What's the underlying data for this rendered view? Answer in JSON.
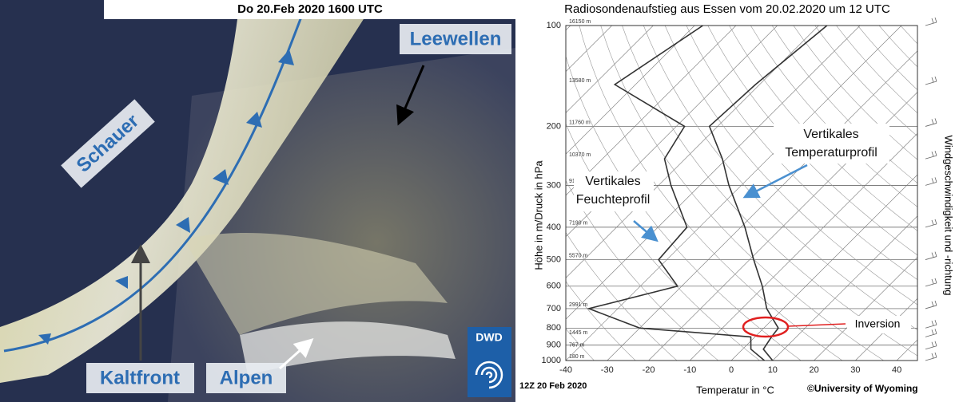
{
  "left_panel": {
    "title": "Do 20.Feb 2020 1600 UTC",
    "labels": [
      "Leewellen",
      "Schauer",
      "Kaltfront",
      "Alpen"
    ],
    "logo": "DWD"
  },
  "chart_data": {
    "type": "skewt",
    "title": "Radiosondenaufstieg aus Essen vom 20.02.2020 um 12 UTC",
    "x_label": "Temperatur in °C",
    "y_label": "Höhe in m/Druck in hPa",
    "y2_label": "Windgeschwindigkeit und -richtung",
    "xlim": [
      -40,
      45
    ],
    "xticks": [
      -40,
      -30,
      -20,
      -10,
      0,
      10,
      20,
      30,
      40
    ],
    "ylim": [
      1000,
      100
    ],
    "yticks": [
      100,
      200,
      300,
      400,
      500,
      600,
      700,
      800,
      900,
      1000
    ],
    "log_scale": true,
    "skewed_isotherms": true,
    "pressure": [
      1000,
      925,
      850,
      800,
      700,
      600,
      500,
      400,
      300,
      250,
      200,
      150,
      100
    ],
    "series": [
      {
        "color": "#333333",
        "values": [
          10,
          5,
          4,
          3.5,
          -4,
          -10.5,
          -19,
          -29,
          -43,
          -51,
          -62,
          -61,
          -58
        ]
      },
      {
        "color": "#333333",
        "values": [
          8,
          2,
          -1,
          -30,
          -47,
          -31,
          -42,
          -43,
          -57,
          -65,
          -68,
          -95,
          -88
        ]
      }
    ],
    "height_pressures": [
      100,
      150,
      200,
      250,
      300,
      400,
      500,
      700,
      850,
      925,
      1000
    ],
    "height_labels": [
      "16150 m",
      "13580 m",
      "11760 m",
      "10370 m",
      "9170 m",
      "7190 m",
      "5570 m",
      "2991 m",
      "1445 m",
      "767 m",
      "180 m"
    ],
    "annotations": [
      {
        "lines": [
          "Vertikales",
          "Temperaturprofil"
        ]
      },
      {
        "lines": [
          "Vertikales",
          "Feuchteprofil"
        ]
      },
      {
        "lines": [
          "Inversion"
        ]
      }
    ],
    "footer_left": "12Z 20 Feb 2020",
    "footer_right": "©University of Wyoming"
  }
}
